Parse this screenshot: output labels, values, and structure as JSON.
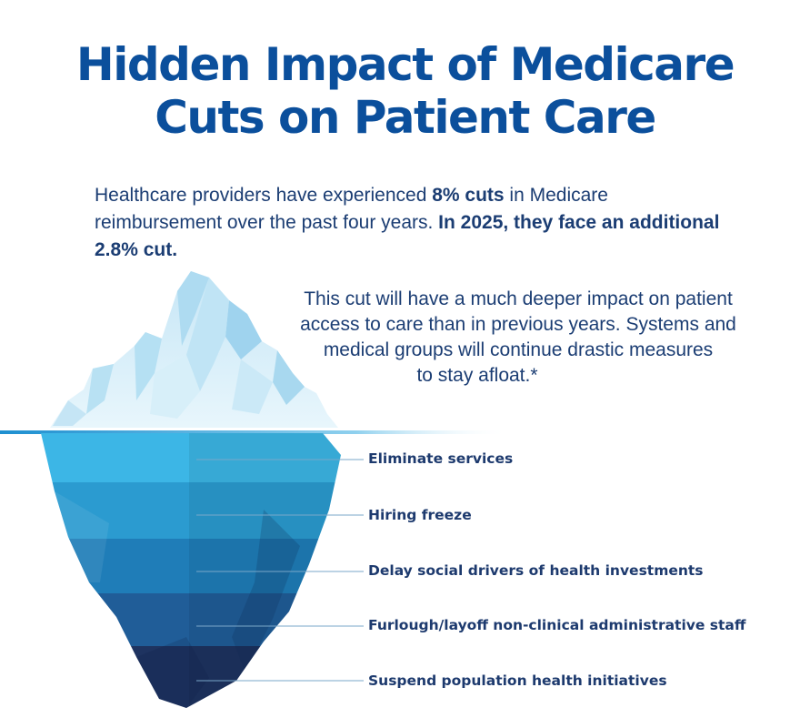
{
  "title": {
    "line1": "Hidden Impact of Medicare",
    "line2": "Cuts on Patient Care"
  },
  "intro": {
    "part1": "Healthcare providers have experienced ",
    "bold1": "8% cuts",
    "part2": " in Medicare reimbursement over the past four years. ",
    "bold2": "In 2025, they face an additional 2.8% cut."
  },
  "deep_text": {
    "line1": "This cut will have a much deeper impact on patient",
    "line2": "access to care than in previous years. Systems and",
    "line3": "medical groups will continue drastic measures",
    "line4": "to stay afloat.*"
  },
  "impacts": [
    {
      "label": "Eliminate services"
    },
    {
      "label": "Hiring freeze"
    },
    {
      "label": "Delay social drivers of health investments"
    },
    {
      "label": "Furlough/layoff non-clinical administrative staff"
    },
    {
      "label": "Suspend population health initiatives"
    }
  ],
  "colors": {
    "title": "#0b4f9c",
    "band1": "#3cb6e6",
    "band2": "#2b9bd0",
    "band3": "#1f7db8",
    "band4": "#205d98",
    "band5": "#1e3360",
    "ice_tip": "#d6eef9"
  }
}
